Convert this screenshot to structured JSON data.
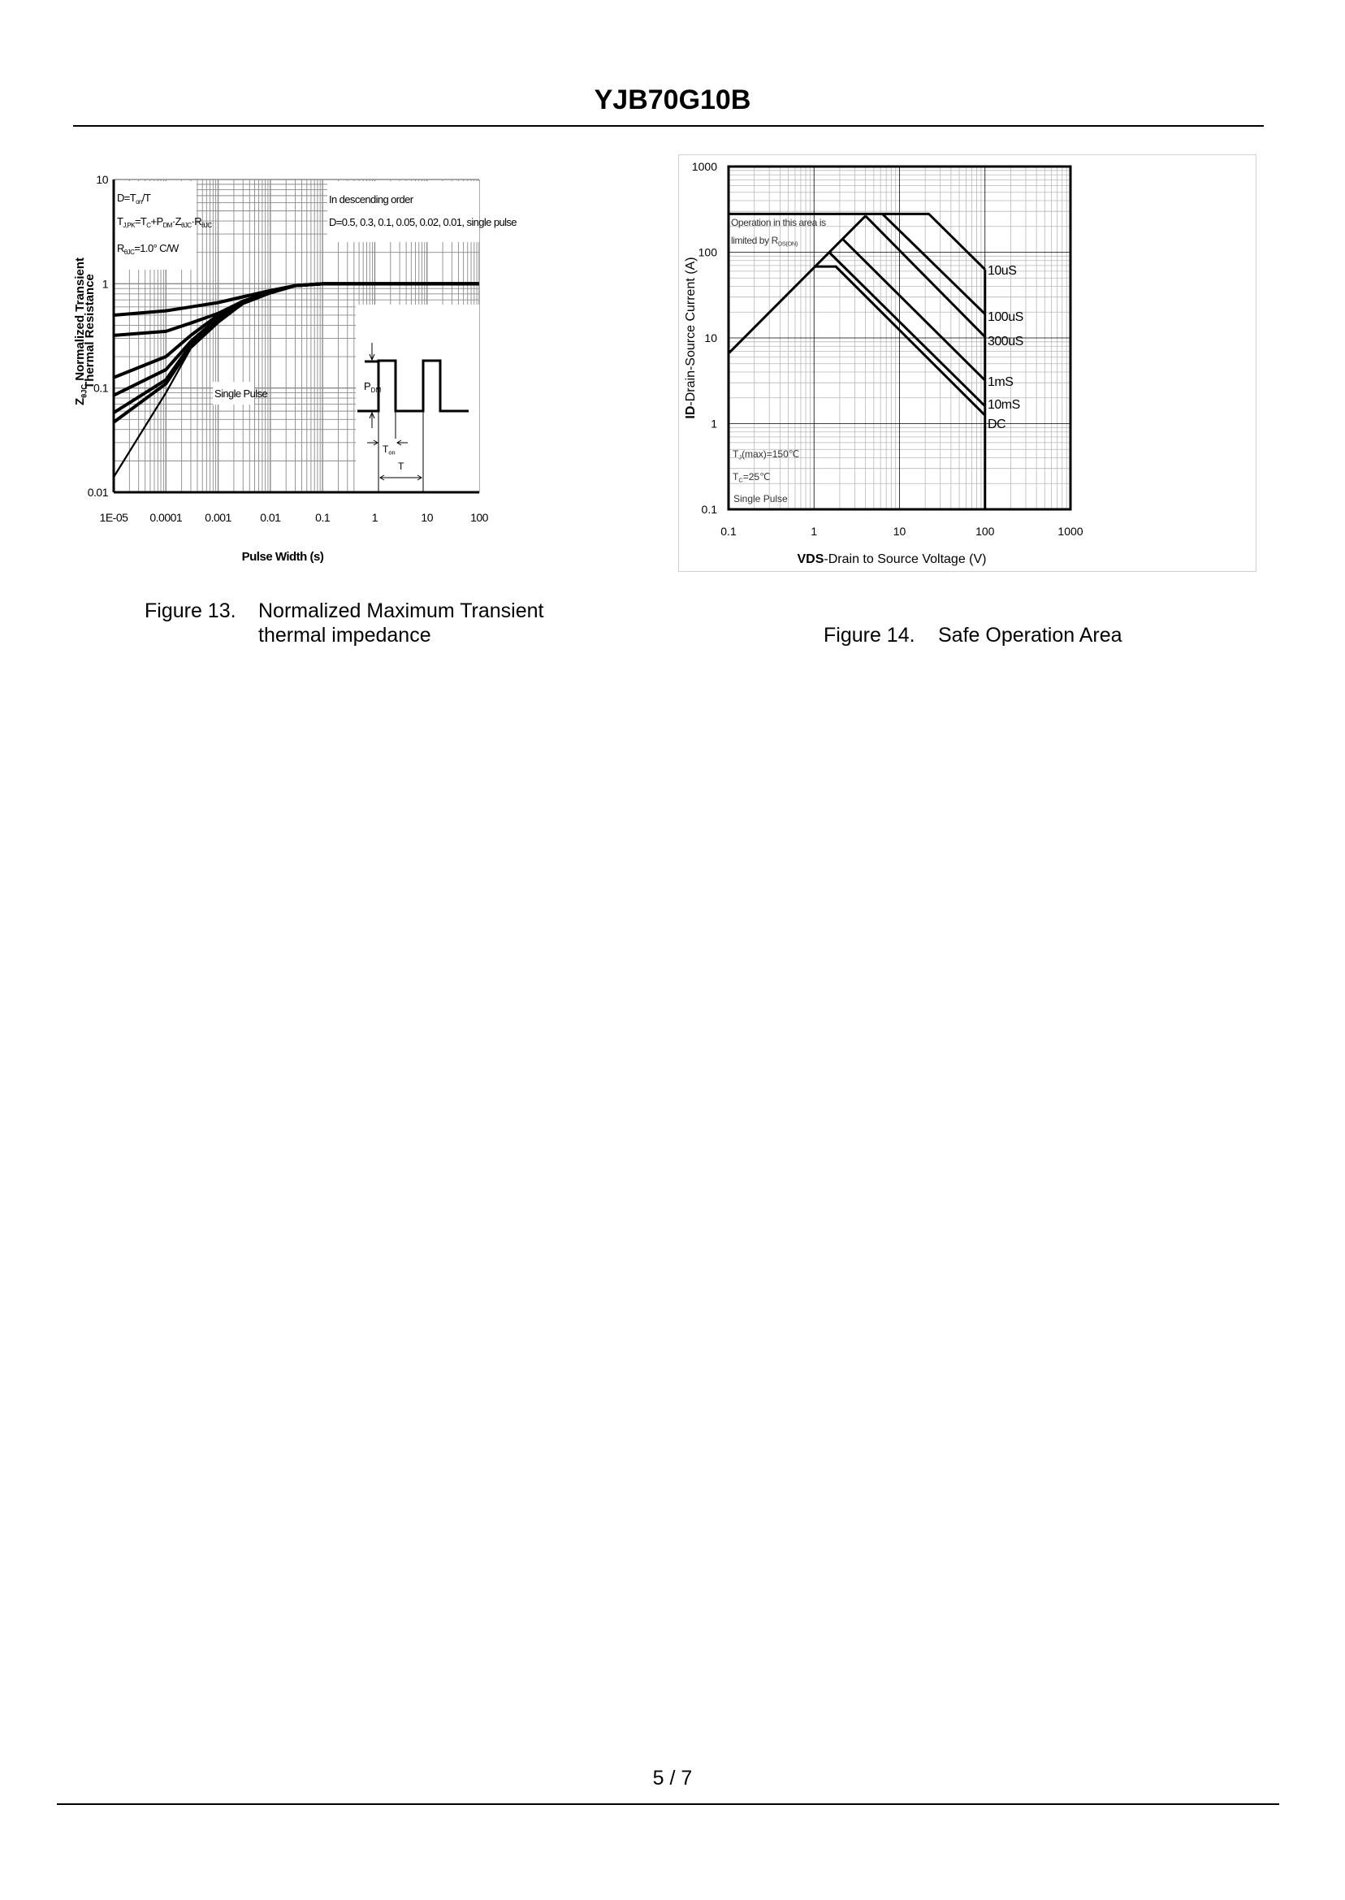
{
  "header": {
    "title": "YJB70G10B"
  },
  "figures": [
    {
      "number": "Figure 13.",
      "caption_line1": "Normalized Maximum Transient",
      "caption_line2": "thermal impedance"
    },
    {
      "number": "Figure 14.",
      "caption_line1": "Safe Operation Area"
    }
  ],
  "footer": {
    "page": "5 / 7"
  },
  "chart_data": [
    {
      "type": "line",
      "title": "",
      "xscale": "log",
      "yscale": "log",
      "xlim": [
        1e-05,
        100
      ],
      "ylim": [
        0.01,
        10
      ],
      "xlabel": "Pulse Width (s)",
      "ylabel_line1": [
        {
          "t": "Z"
        },
        {
          "t": "θJC",
          "sub": true
        },
        {
          "t": " Normalized Transient"
        }
      ],
      "ylabel_line2": "Thermal Resistance",
      "xticks": [
        "1E-05",
        "0.0001",
        "0.001",
        "0.01",
        "0.1",
        "1",
        "10",
        "100"
      ],
      "yticks": [
        "0.01",
        "0.1",
        "1",
        "10"
      ],
      "grid": true,
      "notes": {
        "duty": [
          {
            "t": "D=T"
          },
          {
            "t": "on",
            "sub": true
          },
          {
            "t": "/T"
          }
        ],
        "tj": [
          {
            "t": "T"
          },
          {
            "t": "J,PK",
            "sub": true
          },
          {
            "t": "=T"
          },
          {
            "t": "C",
            "sub": true
          },
          {
            "t": "+P"
          },
          {
            "t": "DM",
            "sub": true
          },
          {
            "t": "·Z"
          },
          {
            "t": "θJC",
            "sub": true
          },
          {
            "t": "·R"
          },
          {
            "t": "θJC",
            "sub": true
          }
        ],
        "rth": [
          {
            "t": "R"
          },
          {
            "t": "θJC",
            "sub": true
          },
          {
            "t": "=1.0°  C/W"
          }
        ],
        "order_line1": "In descending order",
        "order_line2": "D=0.5, 0.3, 0.1, 0.05, 0.02, 0.01, single pulse",
        "single_pulse": "Single Pulse",
        "pdm": [
          {
            "t": "P"
          },
          {
            "t": "DM",
            "sub": true
          }
        ],
        "ton": [
          {
            "t": "T"
          },
          {
            "t": "on",
            "sub": true
          }
        ],
        "t": "T"
      },
      "x": [
        1e-05,
        0.0001,
        0.0003,
        0.001,
        0.003,
        0.01,
        0.03,
        0.1,
        1,
        10,
        100
      ],
      "series": [
        {
          "name": "D=0.5",
          "values": [
            0.5,
            0.55,
            0.6,
            0.66,
            0.75,
            0.86,
            0.96,
            1,
            1,
            1,
            1
          ]
        },
        {
          "name": "D=0.3",
          "values": [
            0.32,
            0.35,
            0.42,
            0.52,
            0.68,
            0.84,
            0.96,
            1,
            1,
            1,
            1
          ]
        },
        {
          "name": "D=0.1",
          "values": [
            0.126,
            0.2,
            0.32,
            0.5,
            0.68,
            0.83,
            0.96,
            1,
            1,
            1,
            1
          ]
        },
        {
          "name": "D=0.05",
          "values": [
            0.085,
            0.15,
            0.28,
            0.47,
            0.66,
            0.82,
            0.96,
            1,
            1,
            1,
            1
          ]
        },
        {
          "name": "D=0.02",
          "values": [
            0.058,
            0.12,
            0.26,
            0.45,
            0.65,
            0.82,
            0.96,
            1,
            1,
            1,
            1
          ]
        },
        {
          "name": "D=0.01",
          "values": [
            0.047,
            0.11,
            0.25,
            0.44,
            0.65,
            0.82,
            0.96,
            1,
            1,
            1,
            1
          ]
        },
        {
          "name": "single pulse",
          "values": [
            0.014,
            0.09,
            0.24,
            0.42,
            0.64,
            0.81,
            0.96,
            1,
            1,
            1,
            1
          ]
        }
      ]
    },
    {
      "type": "line",
      "title": "",
      "xscale": "log",
      "yscale": "log",
      "xlim": [
        0.1,
        1000
      ],
      "ylim": [
        0.1,
        1000
      ],
      "xlabel_bold": "VDS",
      "xlabel_rest": "-Drain to Source Voltage (V)",
      "ylabel_bold": "ID",
      "ylabel_rest": "-Drain-Source Current  (A)",
      "xticks": [
        "0.1",
        "1",
        "10",
        "100",
        "1000"
      ],
      "yticks": [
        "0.1",
        "1",
        "10",
        "100",
        "1000"
      ],
      "grid": true,
      "notes": {
        "rds_line1": "Operation in this area is",
        "rds_line2": [
          {
            "t": "limited by R"
          },
          {
            "t": "DS(ON)",
            "sub": true
          }
        ],
        "tj": [
          {
            "t": "T"
          },
          {
            "t": "J",
            "sub": true
          },
          {
            "t": "(max)=150℃"
          }
        ],
        "tc": [
          {
            "t": "T"
          },
          {
            "t": "C",
            "sub": true
          },
          {
            "t": "=25℃"
          }
        ],
        "pulse": "Single Pulse"
      },
      "limits": [
        {
          "name": "RDS(on) limit",
          "points": [
            [
              0.1,
              6.6
            ],
            [
              4,
              265
            ]
          ]
        },
        {
          "name": "VDS limit",
          "points": [
            [
              100,
              63
            ],
            [
              100,
              0.1
            ]
          ]
        }
      ],
      "series": [
        {
          "name": "10uS",
          "points": [
            [
              0.1,
              280
            ],
            [
              22,
              280
            ],
            [
              100,
              63
            ]
          ]
        },
        {
          "name": "100uS",
          "points": [
            [
              6.3,
              280
            ],
            [
              100,
              19
            ]
          ]
        },
        {
          "name": "300uS",
          "points": [
            [
              4,
              265
            ],
            [
              100,
              10.3
            ]
          ]
        },
        {
          "name": "1mS",
          "points": [
            [
              2.2,
              140
            ],
            [
              100,
              3.2
            ]
          ]
        },
        {
          "name": "10mS",
          "points": [
            [
              1.5,
              100
            ],
            [
              100,
              1.6
            ]
          ]
        },
        {
          "name": "DC",
          "points": [
            [
              1.02,
              68
            ],
            [
              1.8,
              68
            ],
            [
              100,
              1.25
            ]
          ]
        }
      ]
    }
  ]
}
